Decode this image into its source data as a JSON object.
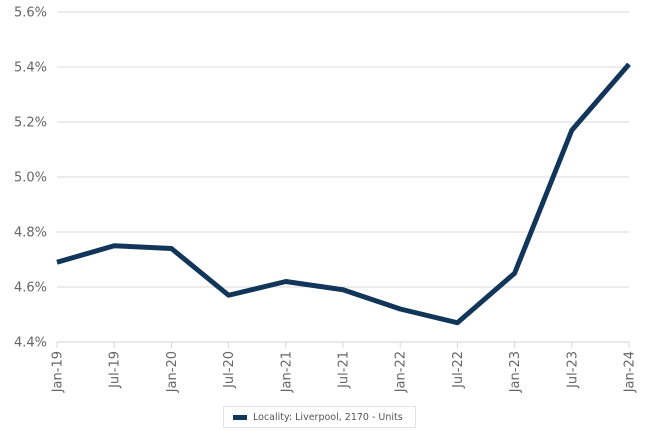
{
  "chart_data": {
    "type": "line",
    "categories": [
      "Jan-19",
      "Jul-19",
      "Jan-20",
      "Jul-20",
      "Jan-21",
      "Jul-21",
      "Jan-22",
      "Jul-22",
      "Jan-23",
      "Jul-23",
      "Jan-24"
    ],
    "series": [
      {
        "name": "Locality: Liverpool, 2170 - Units",
        "values": [
          4.69,
          4.75,
          4.74,
          4.57,
          4.62,
          4.59,
          4.52,
          4.47,
          4.65,
          5.17,
          5.41
        ],
        "color": "#12365a"
      }
    ],
    "ylim": [
      4.4,
      5.6
    ],
    "yticks": [
      "4.4%",
      "4.6%",
      "4.8%",
      "5.0%",
      "5.2%",
      "5.4%",
      "5.6%"
    ],
    "ytick_values": [
      4.4,
      4.6,
      4.8,
      5.0,
      5.2,
      5.4,
      5.6
    ],
    "grid": true,
    "legend_position": "bottom-center",
    "gridline_color": "#d9d9d9"
  }
}
